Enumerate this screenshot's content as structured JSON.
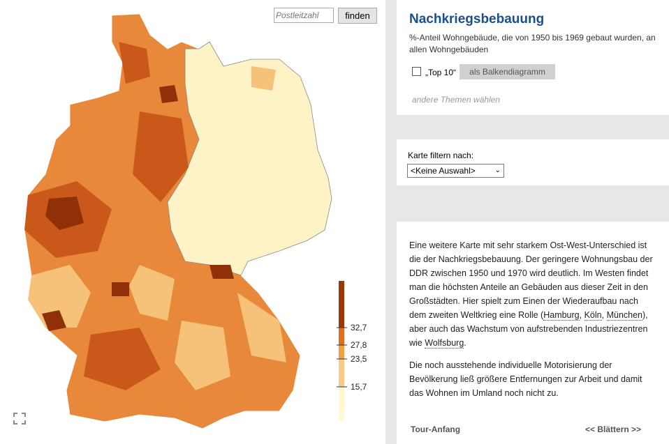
{
  "search": {
    "placeholder": "Postleitzahl",
    "button": "finden"
  },
  "legend": {
    "labels": [
      "32,7",
      "27,8",
      "23,5",
      "15,7"
    ]
  },
  "panel": {
    "title": "Nachkriegsbebauung",
    "subtitle": "%-Anteil Wohngebäude, die von 1950 bis 1969 gebaut wurden, an allen Wohngebäuden",
    "checkbox": "„Top 10“",
    "button": "als Balkendiagramm",
    "other_topics": "andere Themen wählen"
  },
  "filter": {
    "label": "Karte filtern nach:",
    "option": "<Keine Auswahl>"
  },
  "text": {
    "paragraphs": [
      [
        {
          "text": "Eine weitere Karte mit sehr starkem Ost-West-Unterschied ist die der Nachkriegsbebauung. Der geringere Wohnungsbau der DDR zwischen 1950 und 1970 wird deutlich. Im Westen findet man die höchsten Anteile an Gebäuden aus dieser Zeit in den Großstädten. Hier spielt zum Einen der Wiederaufbau nach dem zweiten Weltkrieg eine Rolle ("
        },
        {
          "link": "Hamburg"
        },
        {
          "text": ", "
        },
        {
          "link": "Köln"
        },
        {
          "text": ", "
        },
        {
          "link": "München"
        },
        {
          "text": "), aber auch das Wachstum von aufstrebenden Industriezentren wie "
        },
        {
          "link": "Wolfsburg"
        },
        {
          "text": "."
        }
      ],
      [
        {
          "text": "Die noch ausstehende individuelle Motorisierung der Bevölkerung ließ größere Entfernungen zur Arbeit und damit das Wohnen im Umland noch nicht zu."
        }
      ]
    ],
    "footer_left": "Tour-Anfang",
    "footer_right": "<< Blättern >>"
  }
}
